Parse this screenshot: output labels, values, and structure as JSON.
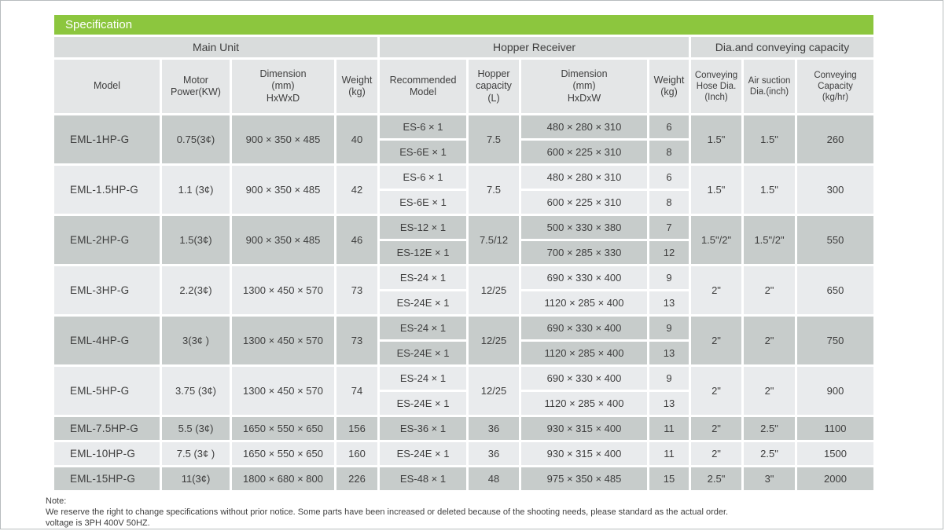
{
  "colors": {
    "accent_green": "#8cc63e",
    "group_header_bg": "#d9dcdc",
    "column_header_bg": "#e4e6e7",
    "row_dark": "#c7cccb",
    "row_light": "#e9ebed",
    "title_text": "#ffffff",
    "body_text": "#3e3e3e"
  },
  "header": {
    "title": "Specification"
  },
  "table": {
    "groups": [
      {
        "label": "Main Unit",
        "colspan": 4
      },
      {
        "label": "Hopper Receiver",
        "colspan": 4
      },
      {
        "label": "Dia.and conveying capacity",
        "colspan": 3
      }
    ],
    "columns": [
      "Model",
      "Motor\nPower(KW)",
      "Dimension\n(mm)\nHxWxD",
      "Weight\n(kg)",
      "Recommended\nModel",
      "Hopper\ncapacity\n(L)",
      "Dimension\n(mm)\nHxDxW",
      "Weight\n(kg)",
      "Conveying\nHose Dia.\n(Inch)",
      "Air suction\nDia.(inch)",
      "Conveying\nCapacity\n(kg/hr)"
    ],
    "rows": [
      {
        "model": "EML-1HP-G",
        "motor_power": "0.75(3¢)",
        "dimension": "900 × 350 × 485",
        "weight": "40",
        "hopper_capacity": "7.5",
        "hose_dia": "1.5\"",
        "air_suction_dia": "1.5\"",
        "conveying_capacity": "260",
        "hoppers": [
          {
            "recommended_model": "ES-6 × 1",
            "dimension": "480 × 280 × 310",
            "weight": "6"
          },
          {
            "recommended_model": "ES-6E × 1",
            "dimension": "600 × 225 × 310",
            "weight": "8"
          }
        ]
      },
      {
        "model": "EML-1.5HP-G",
        "motor_power": "1.1 (3¢)",
        "dimension": "900 × 350 × 485",
        "weight": "42",
        "hopper_capacity": "7.5",
        "hose_dia": "1.5\"",
        "air_suction_dia": "1.5\"",
        "conveying_capacity": "300",
        "hoppers": [
          {
            "recommended_model": "ES-6 × 1",
            "dimension": "480 × 280 × 310",
            "weight": "6"
          },
          {
            "recommended_model": "ES-6E × 1",
            "dimension": "600 × 225 × 310",
            "weight": "8"
          }
        ]
      },
      {
        "model": "EML-2HP-G",
        "motor_power": "1.5(3¢)",
        "dimension": "900 × 350 × 485",
        "weight": "46",
        "hopper_capacity": "7.5/12",
        "hose_dia": "1.5\"/2\"",
        "air_suction_dia": "1.5\"/2\"",
        "conveying_capacity": "550",
        "hoppers": [
          {
            "recommended_model": "ES-12 × 1",
            "dimension": "500 × 330 × 380",
            "weight": "7"
          },
          {
            "recommended_model": "ES-12E × 1",
            "dimension": "700 × 285 × 330",
            "weight": "12"
          }
        ]
      },
      {
        "model": "EML-3HP-G",
        "motor_power": "2.2(3¢)",
        "dimension": "1300 × 450 × 570",
        "weight": "73",
        "hopper_capacity": "12/25",
        "hose_dia": "2\"",
        "air_suction_dia": "2\"",
        "conveying_capacity": "650",
        "hoppers": [
          {
            "recommended_model": "ES-24 × 1",
            "dimension": "690 × 330 × 400",
            "weight": "9"
          },
          {
            "recommended_model": "ES-24E × 1",
            "dimension": "1120 × 285 × 400",
            "weight": "13"
          }
        ]
      },
      {
        "model": "EML-4HP-G",
        "motor_power": "3(3¢ )",
        "dimension": "1300 × 450 × 570",
        "weight": "73",
        "hopper_capacity": "12/25",
        "hose_dia": "2\"",
        "air_suction_dia": "2\"",
        "conveying_capacity": "750",
        "hoppers": [
          {
            "recommended_model": "ES-24 × 1",
            "dimension": "690 × 330 × 400",
            "weight": "9"
          },
          {
            "recommended_model": "ES-24E × 1",
            "dimension": "1120 × 285 × 400",
            "weight": "13"
          }
        ]
      },
      {
        "model": "EML-5HP-G",
        "motor_power": "3.75 (3¢)",
        "dimension": "1300 × 450 × 570",
        "weight": "74",
        "hopper_capacity": "12/25",
        "hose_dia": "2\"",
        "air_suction_dia": "2\"",
        "conveying_capacity": "900",
        "hoppers": [
          {
            "recommended_model": "ES-24 × 1",
            "dimension": "690 × 330 × 400",
            "weight": "9"
          },
          {
            "recommended_model": "ES-24E × 1",
            "dimension": "1120 × 285 × 400",
            "weight": "13"
          }
        ]
      },
      {
        "model": "EML-7.5HP-G",
        "motor_power": "5.5 (3¢)",
        "dimension": "1650 × 550 × 650",
        "weight": "156",
        "hopper_capacity": "36",
        "hose_dia": "2\"",
        "air_suction_dia": "2.5\"",
        "conveying_capacity": "1100",
        "hoppers": [
          {
            "recommended_model": "ES-36 × 1",
            "dimension": "930 × 315 × 400",
            "weight": "11"
          }
        ]
      },
      {
        "model": "EML-10HP-G",
        "motor_power": "7.5 (3¢ )",
        "dimension": "1650 × 550 × 650",
        "weight": "160",
        "hopper_capacity": "36",
        "hose_dia": "2\"",
        "air_suction_dia": "2.5\"",
        "conveying_capacity": "1500",
        "hoppers": [
          {
            "recommended_model": "ES-24E × 1",
            "dimension": "930 × 315 × 400",
            "weight": "11"
          }
        ]
      },
      {
        "model": "EML-15HP-G",
        "motor_power": "11(3¢)",
        "dimension": "1800 × 680 × 800",
        "weight": "226",
        "hopper_capacity": "48",
        "hose_dia": "2.5\"",
        "air_suction_dia": "3\"",
        "conveying_capacity": "2000",
        "hoppers": [
          {
            "recommended_model": "ES-48 × 1",
            "dimension": "975 × 350 × 485",
            "weight": "15"
          }
        ]
      }
    ]
  },
  "note": {
    "label": "Note:",
    "line1": "We reserve the right to change specifications without prior notice. Some parts have been increased or deleted because of the shooting needs, please standard as the actual order.",
    "line2": "voltage is 3PH 400V 50HZ."
  }
}
